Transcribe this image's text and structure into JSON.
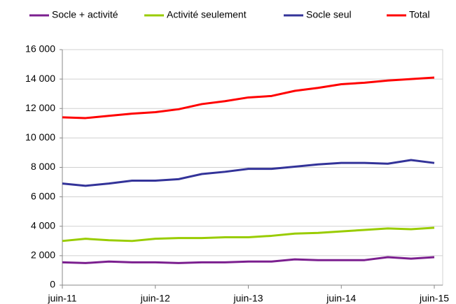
{
  "chart_data": {
    "type": "line",
    "categories": [
      "juin-11",
      null,
      null,
      null,
      "juin-12",
      null,
      null,
      null,
      "juin-13",
      null,
      null,
      null,
      "juin-14",
      null,
      null,
      null,
      "juin-15"
    ],
    "series": [
      {
        "name": "Socle + activité",
        "color": "#7b1f8f",
        "values": [
          1550,
          1500,
          1600,
          1550,
          1550,
          1500,
          1550,
          1550,
          1600,
          1600,
          1750,
          1700,
          1700,
          1700,
          1900,
          1800,
          1900
        ]
      },
      {
        "name": "Activité seulement",
        "color": "#99cc00",
        "values": [
          3000,
          3150,
          3050,
          3000,
          3150,
          3200,
          3200,
          3250,
          3250,
          3350,
          3500,
          3550,
          3650,
          3750,
          3850,
          3800,
          3900
        ]
      },
      {
        "name": "Socle seul",
        "color": "#333399",
        "values": [
          6900,
          6750,
          6900,
          7100,
          7100,
          7200,
          7550,
          7700,
          7900,
          7900,
          8050,
          8200,
          8300,
          8300,
          8250,
          8500,
          8300
        ]
      },
      {
        "name": "Total",
        "color": "#ff0000",
        "values": [
          11400,
          11350,
          11500,
          11650,
          11750,
          11950,
          12300,
          12500,
          12750,
          12850,
          13200,
          13400,
          13650,
          13750,
          13900,
          14000,
          14100
        ]
      }
    ],
    "ylim": [
      0,
      16000
    ],
    "yticks": [
      0,
      {
        "value": 2000,
        "label": "2 000"
      },
      {
        "value": 4000,
        "label": "4 000"
      },
      {
        "value": 6000,
        "label": "6 000"
      },
      {
        "value": 8000,
        "label": "8 000"
      },
      {
        "value": 10000,
        "label": "10 000"
      },
      {
        "value": 12000,
        "label": "12 000"
      },
      {
        "value": 14000,
        "label": "14 000"
      },
      {
        "value": 16000,
        "label": "16 000"
      }
    ],
    "grid": true,
    "legend": "top"
  }
}
